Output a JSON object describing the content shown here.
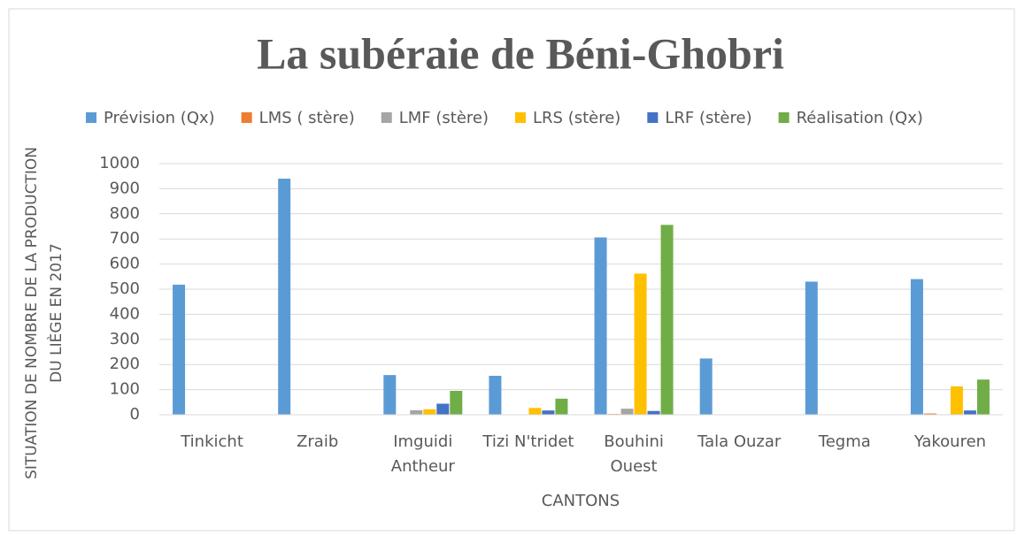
{
  "chart_data": {
    "type": "bar",
    "title": "La subéraie de Béni-Ghobri",
    "x_label": "CANTONS",
    "y_label": "SITUATION DE NOMBRE DE LA PRODUCTION\nDU LIÈGE EN 2017",
    "categories": [
      "Tinkicht",
      "Zraib",
      "Imguidi\nAntheur",
      "Tizi N'tridet",
      "Bouhini\nOuest",
      "Tala Ouzar",
      "Tegma",
      "Yakouren"
    ],
    "series": [
      {
        "name": "Prévision (Qx)",
        "color": "#5b9bd5",
        "values": [
          518,
          940,
          158,
          155,
          706,
          224,
          530,
          540
        ]
      },
      {
        "name": "LMS ( stère)",
        "color": "#ed7d31",
        "values": [
          0,
          0,
          0,
          0,
          3,
          0,
          0,
          5
        ]
      },
      {
        "name": "LMF (stère)",
        "color": "#a5a5a5",
        "values": [
          0,
          0,
          18,
          0,
          24,
          0,
          0,
          0
        ]
      },
      {
        "name": "LRS (stère)",
        "color": "#ffc000",
        "values": [
          0,
          0,
          22,
          27,
          562,
          0,
          0,
          113
        ]
      },
      {
        "name": "LRF (stère)",
        "color": "#4472c4",
        "values": [
          0,
          0,
          44,
          17,
          15,
          0,
          0,
          17
        ]
      },
      {
        "name": "Réalisation (Qx)",
        "color": "#70ad47",
        "values": [
          0,
          0,
          95,
          64,
          756,
          0,
          0,
          140
        ]
      }
    ],
    "ylim": [
      0,
      1000
    ],
    "yticks": [
      0,
      100,
      200,
      300,
      400,
      500,
      600,
      700,
      800,
      900,
      1000
    ],
    "grid": true,
    "legend": "top"
  }
}
